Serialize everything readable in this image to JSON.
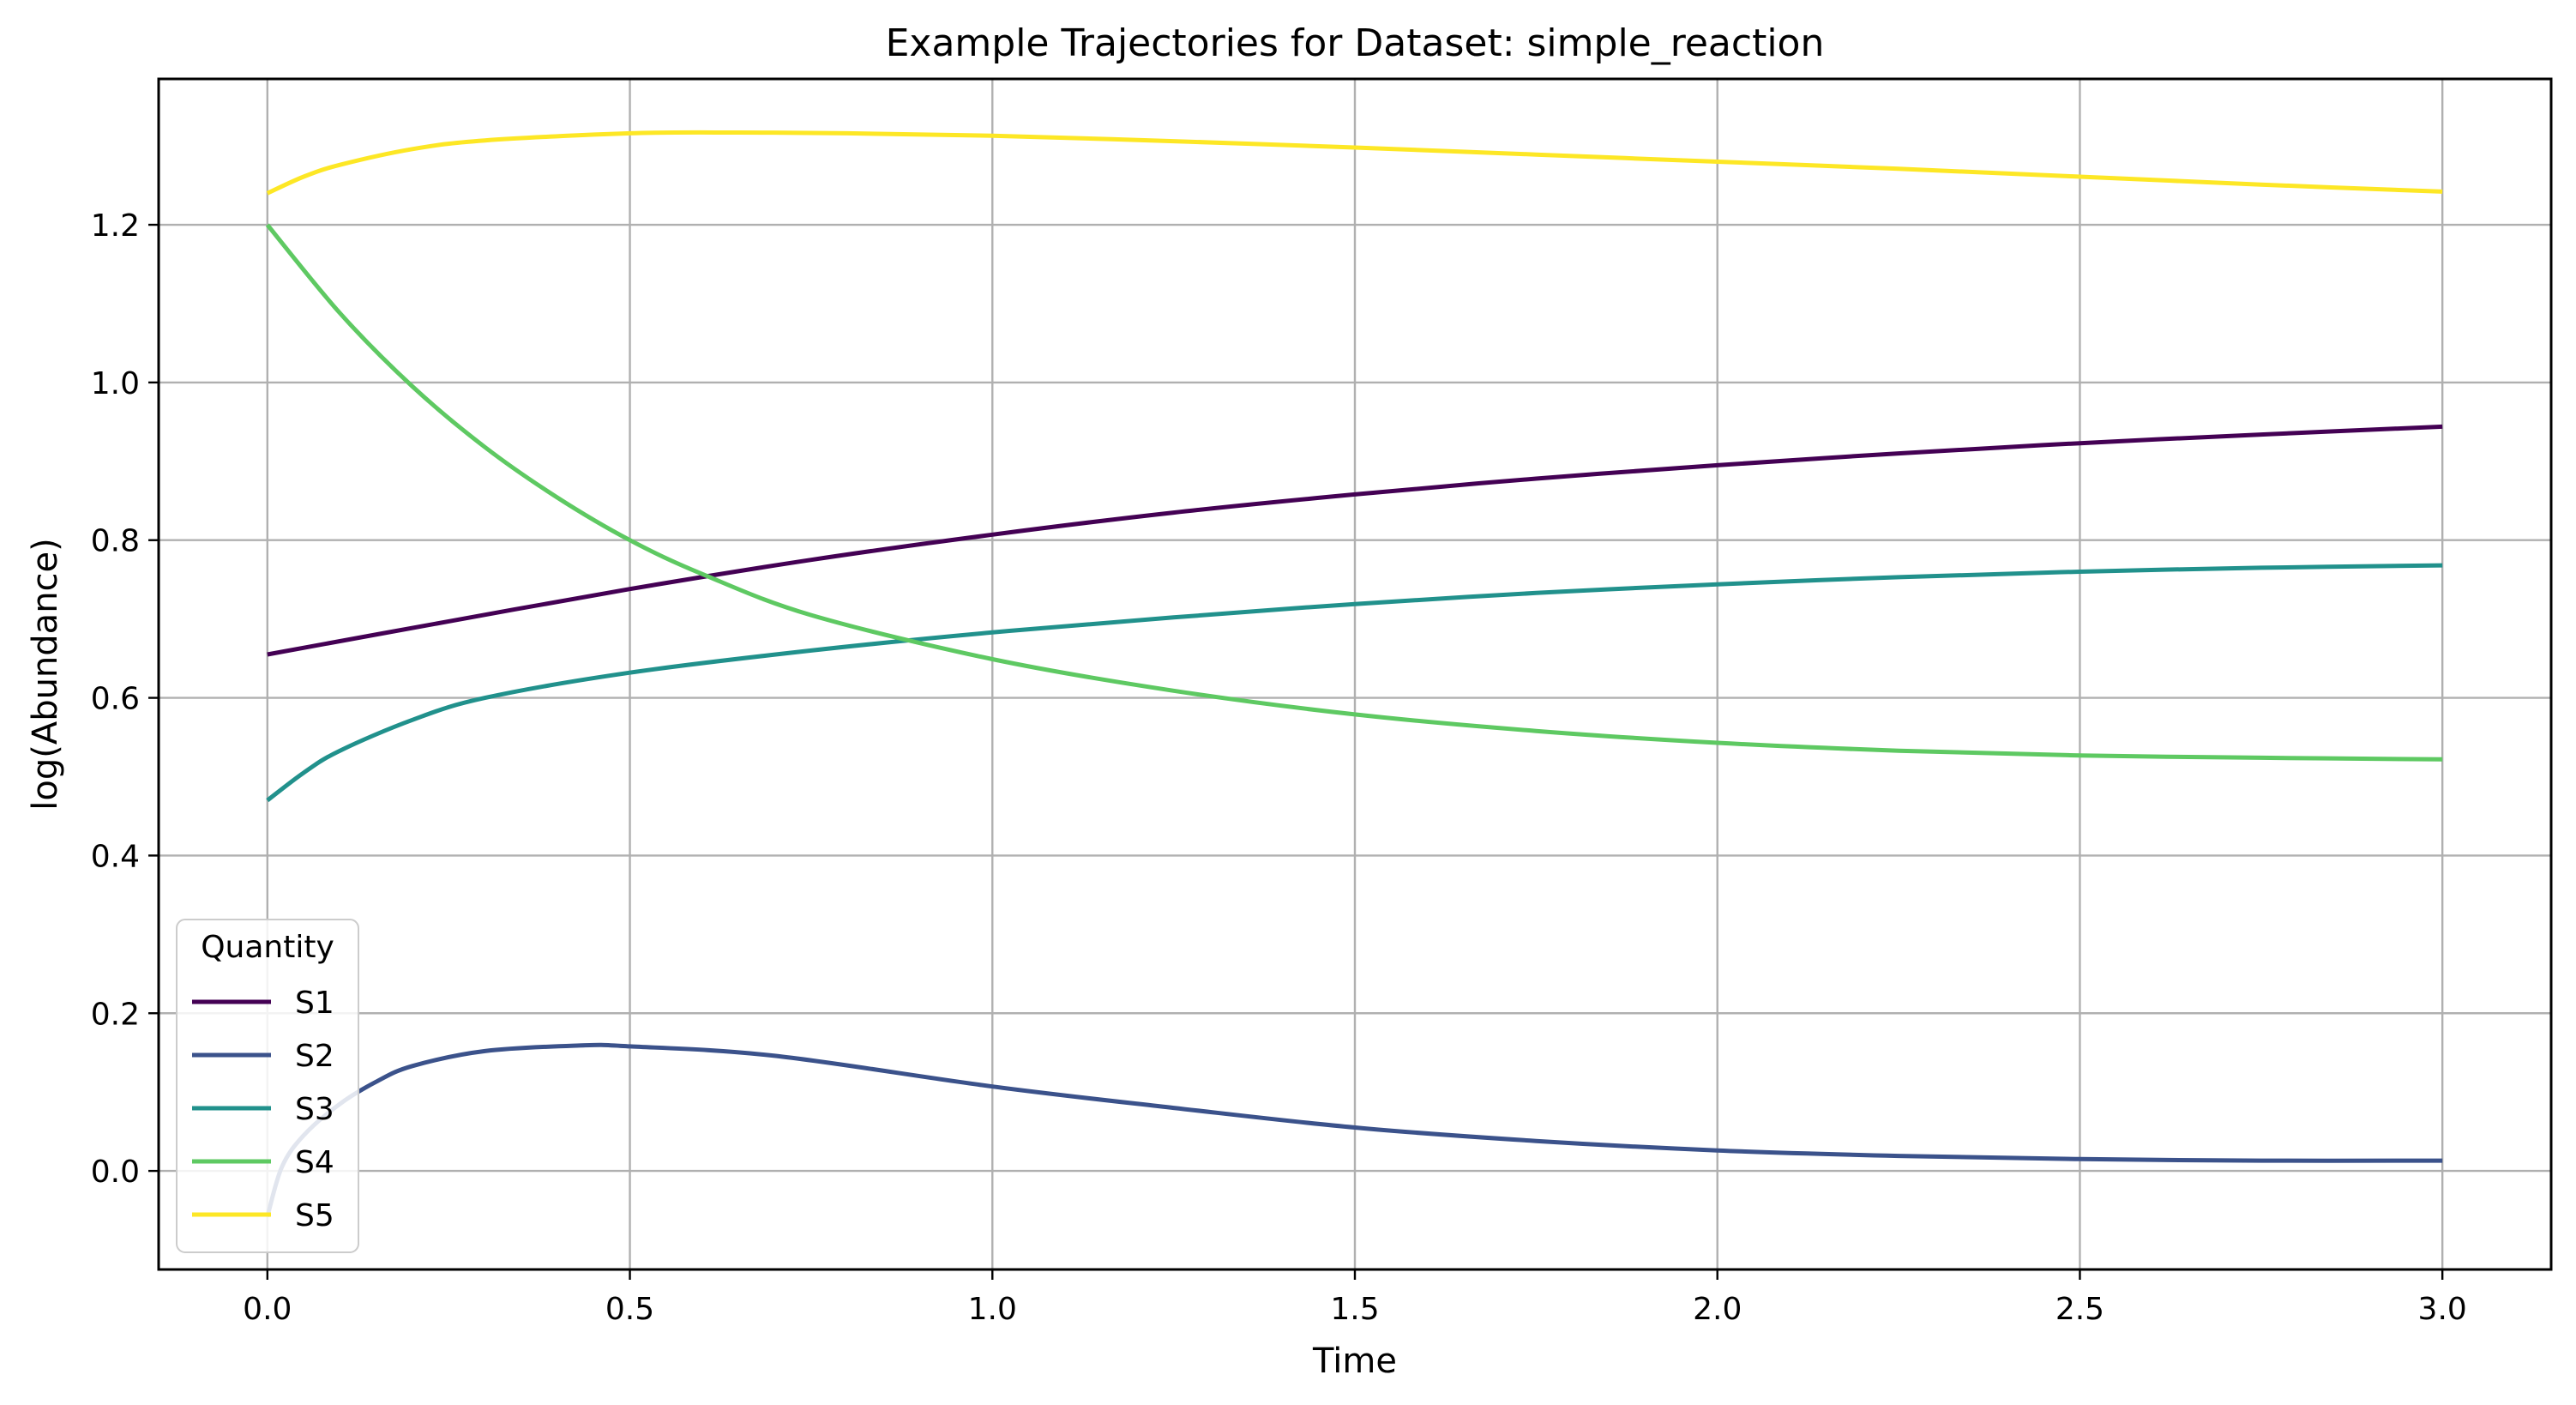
{
  "chart_data": {
    "type": "line",
    "title": "Example Trajectories for Dataset: simple_reaction",
    "xlabel": "Time",
    "ylabel": "log(Abundance)",
    "xlim": [
      -0.15,
      3.15
    ],
    "ylim": [
      -0.125,
      1.385
    ],
    "xticks": [
      0.0,
      0.5,
      1.0,
      1.5,
      2.0,
      2.5,
      3.0
    ],
    "xtick_labels": [
      "0.0",
      "0.5",
      "1.0",
      "1.5",
      "2.0",
      "2.5",
      "3.0"
    ],
    "yticks": [
      0.0,
      0.2,
      0.4,
      0.6,
      0.8,
      1.0,
      1.2
    ],
    "ytick_labels": [
      "0.0",
      "0.2",
      "0.4",
      "0.6",
      "0.8",
      "1.0",
      "1.2"
    ],
    "grid": true,
    "legend": {
      "title": "Quantity",
      "placement": "lower-left"
    },
    "series": [
      {
        "name": "S1",
        "color": "#440154",
        "x": [
          0.0,
          0.25,
          0.5,
          0.75,
          1.0,
          1.25,
          1.5,
          1.75,
          2.0,
          2.25,
          2.5,
          2.75,
          3.0
        ],
        "y": [
          0.655,
          0.697,
          0.738,
          0.775,
          0.807,
          0.835,
          0.858,
          0.878,
          0.895,
          0.91,
          0.923,
          0.934,
          0.944
        ]
      },
      {
        "name": "S2",
        "color": "#3b528b",
        "x": [
          0.0,
          0.02,
          0.05,
          0.1,
          0.15,
          0.2,
          0.3,
          0.43,
          0.5,
          0.7,
          1.0,
          1.25,
          1.5,
          1.75,
          2.0,
          2.25,
          2.5,
          2.75,
          3.0
        ],
        "y": [
          -0.058,
          0.005,
          0.045,
          0.085,
          0.113,
          0.133,
          0.152,
          0.159,
          0.158,
          0.146,
          0.107,
          0.08,
          0.055,
          0.038,
          0.026,
          0.019,
          0.015,
          0.013,
          0.013
        ]
      },
      {
        "name": "S3",
        "color": "#21918c",
        "x": [
          0.0,
          0.05,
          0.1,
          0.2,
          0.3,
          0.5,
          0.75,
          1.0,
          1.25,
          1.5,
          1.75,
          2.0,
          2.25,
          2.5,
          2.75,
          3.0
        ],
        "y": [
          0.47,
          0.505,
          0.533,
          0.572,
          0.6,
          0.632,
          0.66,
          0.683,
          0.702,
          0.719,
          0.733,
          0.744,
          0.753,
          0.76,
          0.765,
          0.768
        ]
      },
      {
        "name": "S4",
        "color": "#5ec962",
        "x": [
          0.0,
          0.1,
          0.2,
          0.3,
          0.4,
          0.5,
          0.6,
          0.75,
          1.0,
          1.25,
          1.5,
          1.75,
          2.0,
          2.25,
          2.5,
          2.75,
          3.0
        ],
        "y": [
          1.2,
          1.088,
          0.995,
          0.918,
          0.854,
          0.8,
          0.757,
          0.705,
          0.649,
          0.609,
          0.579,
          0.558,
          0.543,
          0.533,
          0.527,
          0.524,
          0.522
        ]
      },
      {
        "name": "S5",
        "color": "#fde725",
        "x": [
          0.0,
          0.05,
          0.1,
          0.2,
          0.3,
          0.5,
          0.65,
          0.8,
          1.0,
          1.25,
          1.5,
          1.75,
          2.0,
          2.25,
          2.5,
          2.75,
          3.0
        ],
        "y": [
          1.24,
          1.261,
          1.276,
          1.296,
          1.307,
          1.316,
          1.317,
          1.316,
          1.313,
          1.306,
          1.298,
          1.289,
          1.28,
          1.271,
          1.261,
          1.251,
          1.242
        ]
      }
    ]
  }
}
